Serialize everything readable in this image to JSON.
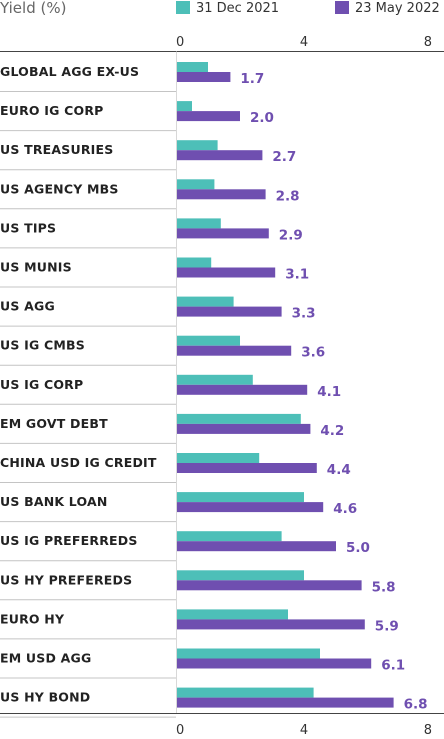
{
  "chart_data": {
    "type": "bar",
    "orientation": "horizontal",
    "title": "Yield (%)",
    "xlim": [
      0,
      8
    ],
    "xticks": [
      0,
      4,
      8
    ],
    "legend_position": "top",
    "categories": [
      "GLOBAL AGG EX-US",
      "EURO IG CORP",
      "US TREASURIES",
      "US AGENCY MBS",
      "US TIPS",
      "US MUNIS",
      "US AGG",
      "US IG CMBS",
      "US IG CORP",
      "EM GOVT DEBT",
      "CHINA USD IG CREDIT",
      "US BANK LOAN",
      "US IG PREFERREDS",
      "US HY PREFEREDS",
      "EURO HY",
      "EM USD AGG",
      "US HY BOND"
    ],
    "series": [
      {
        "name": "31 Dec 2021",
        "color": "#4dbfb8",
        "values": [
          1.0,
          0.5,
          1.3,
          1.2,
          1.4,
          1.1,
          1.8,
          2.0,
          2.4,
          3.9,
          2.6,
          4.0,
          3.3,
          4.0,
          3.5,
          4.5,
          4.3
        ]
      },
      {
        "name": "23 May 2022",
        "color": "#6f4fb0",
        "values": [
          1.7,
          2.0,
          2.7,
          2.8,
          2.9,
          3.1,
          3.3,
          3.6,
          4.1,
          4.2,
          4.4,
          4.6,
          5.0,
          5.8,
          5.9,
          6.1,
          6.8
        ]
      }
    ],
    "value_labels": [
      "1.7",
      "2.0",
      "2.7",
      "2.8",
      "2.9",
      "3.1",
      "3.3",
      "3.6",
      "4.1",
      "4.2",
      "4.4",
      "4.6",
      "5.0",
      "5.8",
      "5.9",
      "6.1",
      "6.8"
    ],
    "value_label_color": "#6f4fb0"
  }
}
